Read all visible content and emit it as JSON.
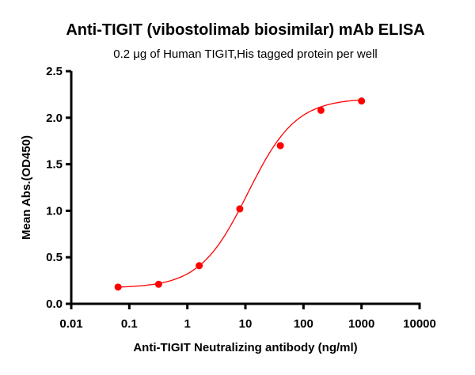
{
  "chart_data": {
    "type": "scatter",
    "title": "Anti-TIGIT (vibostolimab biosimilar) mAb ELISA",
    "subtitle": "0.2 μg of Human TIGIT,His tagged protein per well",
    "xlabel": "Anti-TIGIT Neutralizing antibody (ng/ml)",
    "ylabel": "Mean Abs.(OD450)",
    "xscale": "log",
    "xlim": [
      0.01,
      10000
    ],
    "ylim": [
      0,
      2.5
    ],
    "xticks": [
      "0.01",
      "0.1",
      "1",
      "10",
      "100",
      "1000",
      "10000"
    ],
    "yticks": [
      "0.0",
      "0.5",
      "1.0",
      "1.5",
      "2.0",
      "2.5"
    ],
    "grid": false,
    "color": "#ff0000",
    "points": {
      "x": [
        0.064,
        0.32,
        1.6,
        8,
        40,
        200,
        1000
      ],
      "y": [
        0.18,
        0.21,
        0.41,
        1.02,
        1.7,
        2.08,
        2.18
      ]
    },
    "fit": {
      "model": "4PL",
      "bottom": 0.17,
      "top": 2.21,
      "ec50": 11,
      "hill": 1.05
    }
  }
}
